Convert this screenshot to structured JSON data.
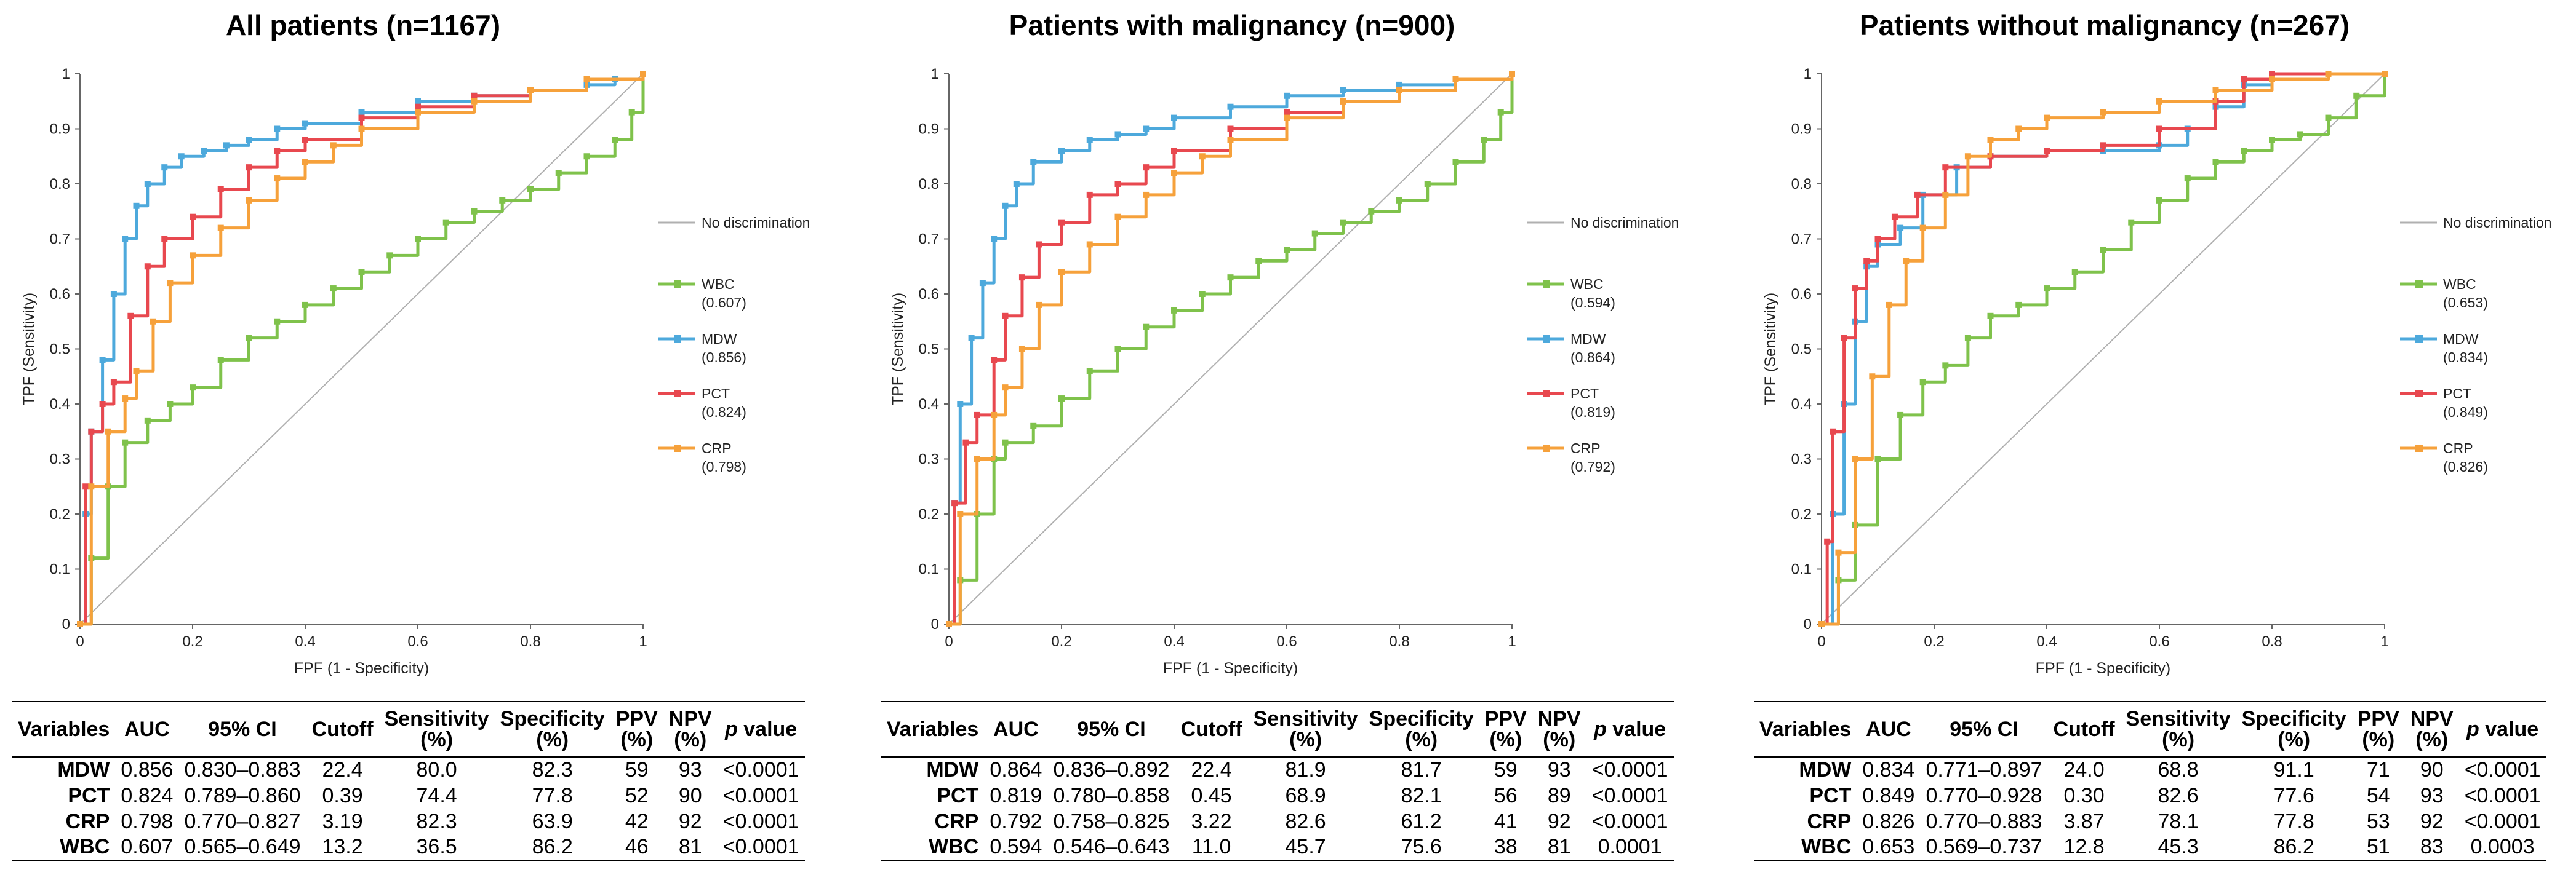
{
  "common": {
    "xlabel": "FPF (1 - Specificity)",
    "ylabel": "TPF (Sensitivity)",
    "ticks": [
      "0",
      "0.1",
      "0.2",
      "0.3",
      "0.4",
      "0.5",
      "0.6",
      "0.7",
      "0.8",
      "0.9",
      "1"
    ],
    "xticks": [
      "0",
      "0.2",
      "0.4",
      "0.6",
      "0.8",
      "1"
    ],
    "no_discrimination_label": "No discrimination",
    "colors": {
      "WBC": "#7fc24b",
      "MDW": "#4da9dc",
      "PCT": "#e8484f",
      "CRP": "#f6a13b",
      "nodisc": "#b0b0b0"
    },
    "table_headers": {
      "variables": "Variables",
      "auc": "AUC",
      "ci": "95% CI",
      "cutoff": "Cutoff",
      "sens_a": "Sensitivity",
      "sens_b": "(%)",
      "spec_a": "Specificity",
      "spec_b": "(%)",
      "ppv_a": "PPV",
      "ppv_b": "(%)",
      "npv_a": "NPV",
      "npv_b": "(%)",
      "p_a": "p",
      "p_b": " value"
    }
  },
  "panels": [
    {
      "title": "All patients (n=1167)",
      "legend": [
        {
          "name": "WBC",
          "auc": "(0.607)"
        },
        {
          "name": "MDW",
          "auc": "(0.856)"
        },
        {
          "name": "PCT",
          "auc": "(0.824)"
        },
        {
          "name": "CRP",
          "auc": "(0.798)"
        }
      ],
      "table": [
        [
          "MDW",
          "0.856",
          "0.830–0.883",
          "22.4",
          "80.0",
          "82.3",
          "59",
          "93",
          "<0.0001"
        ],
        [
          "PCT",
          "0.824",
          "0.789–0.860",
          "0.39",
          "74.4",
          "77.8",
          "52",
          "90",
          "<0.0001"
        ],
        [
          "CRP",
          "0.798",
          "0.770–0.827",
          "3.19",
          "82.3",
          "63.9",
          "42",
          "92",
          "<0.0001"
        ],
        [
          "WBC",
          "0.607",
          "0.565–0.649",
          "13.2",
          "36.5",
          "86.2",
          "46",
          "81",
          "<0.0001"
        ]
      ]
    },
    {
      "title": "Patients with malignancy (n=900)",
      "legend": [
        {
          "name": "WBC",
          "auc": "(0.594)"
        },
        {
          "name": "MDW",
          "auc": "(0.864)"
        },
        {
          "name": "PCT",
          "auc": "(0.819)"
        },
        {
          "name": "CRP",
          "auc": "(0.792)"
        }
      ],
      "table": [
        [
          "MDW",
          "0.864",
          "0.836–0.892",
          "22.4",
          "81.9",
          "81.7",
          "59",
          "93",
          "<0.0001"
        ],
        [
          "PCT",
          "0.819",
          "0.780–0.858",
          "0.45",
          "68.9",
          "82.1",
          "56",
          "89",
          "<0.0001"
        ],
        [
          "CRP",
          "0.792",
          "0.758–0.825",
          "3.22",
          "82.6",
          "61.2",
          "41",
          "92",
          "<0.0001"
        ],
        [
          "WBC",
          "0.594",
          "0.546–0.643",
          "11.0",
          "45.7",
          "75.6",
          "38",
          "81",
          "0.0001"
        ]
      ]
    },
    {
      "title": "Patients without malignancy (n=267)",
      "legend": [
        {
          "name": "WBC",
          "auc": "(0.653)"
        },
        {
          "name": "MDW",
          "auc": "(0.834)"
        },
        {
          "name": "PCT",
          "auc": "(0.849)"
        },
        {
          "name": "CRP",
          "auc": "(0.826)"
        }
      ],
      "table": [
        [
          "MDW",
          "0.834",
          "0.771–0.897",
          "24.0",
          "68.8",
          "91.1",
          "71",
          "90",
          "<0.0001"
        ],
        [
          "PCT",
          "0.849",
          "0.770–0.928",
          "0.30",
          "82.6",
          "77.6",
          "54",
          "93",
          "<0.0001"
        ],
        [
          "CRP",
          "0.826",
          "0.770–0.883",
          "3.87",
          "78.1",
          "77.8",
          "53",
          "92",
          "<0.0001"
        ],
        [
          "WBC",
          "0.653",
          "0.569–0.737",
          "12.8",
          "45.3",
          "86.2",
          "51",
          "83",
          "0.0003"
        ]
      ]
    }
  ],
  "chart_data": [
    {
      "type": "line",
      "title": "All patients (n=1167)",
      "xlabel": "FPF (1 - Specificity)",
      "ylabel": "TPF (Sensitivity)",
      "xlim": [
        0,
        1
      ],
      "ylim": [
        0,
        1
      ],
      "series": [
        {
          "name": "WBC",
          "x": [
            0,
            0.02,
            0.05,
            0.08,
            0.12,
            0.16,
            0.2,
            0.25,
            0.3,
            0.35,
            0.4,
            0.45,
            0.5,
            0.55,
            0.6,
            0.65,
            0.7,
            0.75,
            0.8,
            0.85,
            0.9,
            0.95,
            0.98,
            1
          ],
          "y": [
            0,
            0.12,
            0.25,
            0.33,
            0.37,
            0.4,
            0.43,
            0.48,
            0.52,
            0.55,
            0.58,
            0.61,
            0.64,
            0.67,
            0.7,
            0.73,
            0.75,
            0.77,
            0.79,
            0.82,
            0.85,
            0.88,
            0.93,
            1
          ]
        },
        {
          "name": "MDW",
          "x": [
            0,
            0.01,
            0.02,
            0.04,
            0.06,
            0.08,
            0.1,
            0.12,
            0.15,
            0.18,
            0.22,
            0.26,
            0.3,
            0.35,
            0.4,
            0.5,
            0.6,
            0.7,
            0.8,
            0.9,
            0.95,
            1
          ],
          "y": [
            0,
            0.2,
            0.35,
            0.48,
            0.6,
            0.7,
            0.76,
            0.8,
            0.83,
            0.85,
            0.86,
            0.87,
            0.88,
            0.9,
            0.91,
            0.93,
            0.95,
            0.96,
            0.97,
            0.98,
            0.99,
            1
          ]
        },
        {
          "name": "PCT",
          "x": [
            0,
            0.01,
            0.02,
            0.04,
            0.06,
            0.09,
            0.12,
            0.15,
            0.2,
            0.25,
            0.3,
            0.35,
            0.4,
            0.5,
            0.6,
            0.7,
            0.8,
            0.9,
            1
          ],
          "y": [
            0,
            0.25,
            0.35,
            0.4,
            0.44,
            0.56,
            0.65,
            0.7,
            0.74,
            0.79,
            0.83,
            0.86,
            0.88,
            0.92,
            0.94,
            0.96,
            0.97,
            0.99,
            1
          ]
        },
        {
          "name": "CRP",
          "x": [
            0,
            0.02,
            0.05,
            0.08,
            0.1,
            0.13,
            0.16,
            0.2,
            0.25,
            0.3,
            0.35,
            0.4,
            0.45,
            0.5,
            0.6,
            0.7,
            0.8,
            0.9,
            1
          ],
          "y": [
            0,
            0.25,
            0.35,
            0.41,
            0.46,
            0.55,
            0.62,
            0.67,
            0.72,
            0.77,
            0.81,
            0.84,
            0.87,
            0.9,
            0.93,
            0.95,
            0.97,
            0.99,
            1
          ]
        }
      ]
    },
    {
      "type": "line",
      "title": "Patients with malignancy (n=900)",
      "xlabel": "FPF (1 - Specificity)",
      "ylabel": "TPF (Sensitivity)",
      "xlim": [
        0,
        1
      ],
      "ylim": [
        0,
        1
      ],
      "series": [
        {
          "name": "WBC",
          "x": [
            0,
            0.02,
            0.05,
            0.08,
            0.1,
            0.15,
            0.2,
            0.25,
            0.3,
            0.35,
            0.4,
            0.45,
            0.5,
            0.55,
            0.6,
            0.65,
            0.7,
            0.75,
            0.8,
            0.85,
            0.9,
            0.95,
            0.98,
            1
          ],
          "y": [
            0,
            0.08,
            0.2,
            0.3,
            0.33,
            0.36,
            0.41,
            0.46,
            0.5,
            0.54,
            0.57,
            0.6,
            0.63,
            0.66,
            0.68,
            0.71,
            0.73,
            0.75,
            0.77,
            0.8,
            0.84,
            0.88,
            0.93,
            1
          ]
        },
        {
          "name": "MDW",
          "x": [
            0,
            0.01,
            0.02,
            0.04,
            0.06,
            0.08,
            0.1,
            0.12,
            0.15,
            0.2,
            0.25,
            0.3,
            0.35,
            0.4,
            0.5,
            0.6,
            0.7,
            0.8,
            0.9,
            1
          ],
          "y": [
            0,
            0.22,
            0.4,
            0.52,
            0.62,
            0.7,
            0.76,
            0.8,
            0.84,
            0.86,
            0.88,
            0.89,
            0.9,
            0.92,
            0.94,
            0.96,
            0.97,
            0.98,
            0.99,
            1
          ]
        },
        {
          "name": "PCT",
          "x": [
            0,
            0.01,
            0.03,
            0.05,
            0.08,
            0.1,
            0.13,
            0.16,
            0.2,
            0.25,
            0.3,
            0.35,
            0.4,
            0.5,
            0.6,
            0.7,
            0.8,
            0.9,
            1
          ],
          "y": [
            0,
            0.22,
            0.33,
            0.38,
            0.48,
            0.56,
            0.63,
            0.69,
            0.73,
            0.78,
            0.8,
            0.83,
            0.86,
            0.9,
            0.93,
            0.95,
            0.97,
            0.99,
            1
          ]
        },
        {
          "name": "CRP",
          "x": [
            0,
            0.02,
            0.05,
            0.08,
            0.1,
            0.13,
            0.16,
            0.2,
            0.25,
            0.3,
            0.35,
            0.4,
            0.45,
            0.5,
            0.6,
            0.7,
            0.8,
            0.9,
            1
          ],
          "y": [
            0,
            0.2,
            0.3,
            0.38,
            0.43,
            0.5,
            0.58,
            0.64,
            0.69,
            0.74,
            0.78,
            0.82,
            0.85,
            0.88,
            0.92,
            0.95,
            0.97,
            0.99,
            1
          ]
        }
      ]
    },
    {
      "type": "line",
      "title": "Patients without malignancy (n=267)",
      "xlabel": "FPF (1 - Specificity)",
      "ylabel": "TPF (Sensitivity)",
      "xlim": [
        0,
        1
      ],
      "ylim": [
        0,
        1
      ],
      "series": [
        {
          "name": "WBC",
          "x": [
            0,
            0.03,
            0.06,
            0.1,
            0.14,
            0.18,
            0.22,
            0.26,
            0.3,
            0.35,
            0.4,
            0.45,
            0.5,
            0.55,
            0.6,
            0.65,
            0.7,
            0.75,
            0.8,
            0.85,
            0.9,
            0.95,
            1
          ],
          "y": [
            0,
            0.08,
            0.18,
            0.3,
            0.38,
            0.44,
            0.47,
            0.52,
            0.56,
            0.58,
            0.61,
            0.64,
            0.68,
            0.73,
            0.77,
            0.81,
            0.84,
            0.86,
            0.88,
            0.89,
            0.92,
            0.96,
            1
          ]
        },
        {
          "name": "MDW",
          "x": [
            0,
            0.02,
            0.04,
            0.06,
            0.08,
            0.1,
            0.14,
            0.18,
            0.24,
            0.3,
            0.4,
            0.5,
            0.6,
            0.65,
            0.7,
            0.75,
            0.8,
            0.9,
            1
          ],
          "y": [
            0,
            0.2,
            0.4,
            0.55,
            0.65,
            0.69,
            0.72,
            0.78,
            0.83,
            0.85,
            0.86,
            0.86,
            0.87,
            0.9,
            0.94,
            0.98,
            1,
            1,
            1
          ]
        },
        {
          "name": "PCT",
          "x": [
            0,
            0.01,
            0.02,
            0.04,
            0.06,
            0.08,
            0.1,
            0.13,
            0.17,
            0.22,
            0.3,
            0.4,
            0.5,
            0.6,
            0.7,
            0.75,
            0.8,
            0.9,
            1
          ],
          "y": [
            0,
            0.15,
            0.35,
            0.52,
            0.61,
            0.66,
            0.7,
            0.74,
            0.78,
            0.83,
            0.85,
            0.86,
            0.87,
            0.9,
            0.95,
            0.99,
            1,
            1,
            1
          ]
        },
        {
          "name": "CRP",
          "x": [
            0,
            0.03,
            0.06,
            0.09,
            0.12,
            0.15,
            0.18,
            0.22,
            0.26,
            0.3,
            0.35,
            0.4,
            0.5,
            0.6,
            0.7,
            0.8,
            0.9,
            1
          ],
          "y": [
            0,
            0.13,
            0.3,
            0.45,
            0.58,
            0.66,
            0.72,
            0.78,
            0.85,
            0.88,
            0.9,
            0.92,
            0.93,
            0.95,
            0.97,
            0.99,
            1,
            1
          ]
        }
      ]
    }
  ]
}
